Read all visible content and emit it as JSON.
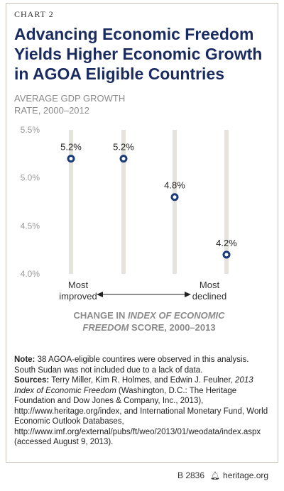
{
  "header": {
    "chart_number": "CHART 2",
    "title": "Advancing Economic Freedom Yields Higher Economic Growth in AGOA Eligible Countries"
  },
  "chart_data": {
    "type": "scatter",
    "title": "Advancing Economic Freedom Yields Higher Economic Growth in AGOA Eligible Countries",
    "ylabel_line1": "AVERAGE GDP GROWTH",
    "ylabel_line2": "RATE, 2000–2012",
    "xlabel_part1": "CHANGE IN",
    "xlabel_italic1": "INDEX OF ECONOMIC",
    "xlabel_italic2": "FREEDOM",
    "xlabel_part2": "SCORE, 2000–2013",
    "ylim": [
      4.0,
      5.5
    ],
    "yticks": [
      "5.5%",
      "5.0%",
      "4.5%",
      "4.0%"
    ],
    "ytick_values": [
      5.5,
      5.0,
      4.5,
      4.0
    ],
    "grid": "vertical",
    "points": [
      {
        "x": 1,
        "y": 5.2,
        "label": "5.2%"
      },
      {
        "x": 2,
        "y": 5.2,
        "label": "5.2%"
      },
      {
        "x": 3,
        "y": 4.8,
        "label": "4.8%"
      },
      {
        "x": 4,
        "y": 4.2,
        "label": "4.2%"
      }
    ],
    "x_left_label_1": "Most",
    "x_left_label_2": "improved",
    "x_right_label_1": "Most",
    "x_right_label_2": "declined",
    "accent_color": "#1a3a7a",
    "grid_color": "#e6e3de"
  },
  "notes": {
    "note_label": "Note:",
    "note_text": " 38 AGOA-eligible countires were observed in this analysis. South Sudan was not included due to a lack of data.",
    "sources_label": "Sources:",
    "sources_text_1": " Terry Miller, Kim R. Holmes, and Edwin J. Feulner, ",
    "sources_italic": "2013 Index of Economic Freedom",
    "sources_text_2": " (Washington, D.C.: The Heritage Foundation and Dow Jones & Company, Inc., 2013), http://www.heritage.org/index, and International Monetary Fund, World Economic Outlook Databases, http://www.imf.org/external/pubs/ft/weo/2013/01/weodata/index.aspx (accessed August 9, 2013)."
  },
  "footer": {
    "code": "B 2836",
    "site": "heritage.org",
    "logo_icon": "bell-icon"
  }
}
